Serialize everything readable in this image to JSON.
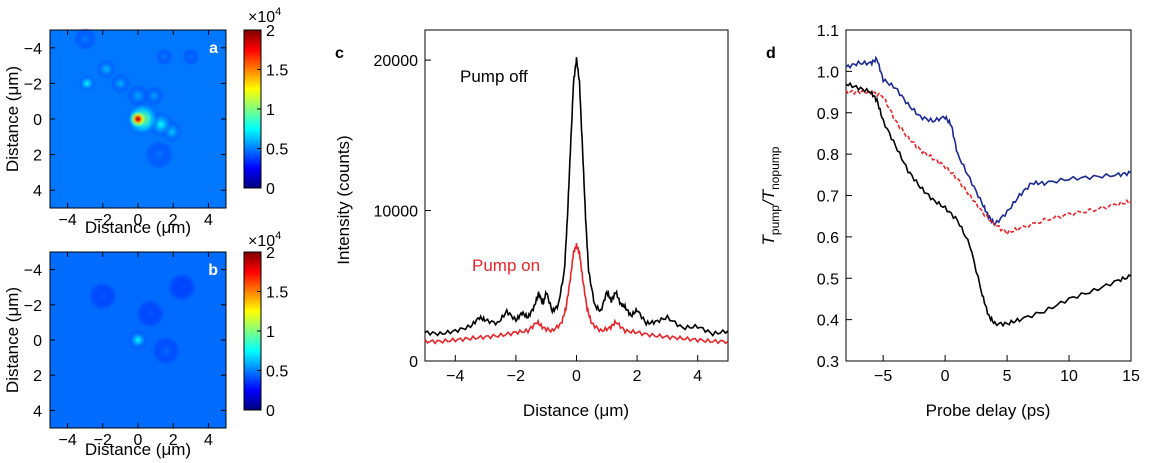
{
  "chart_data": [
    {
      "type": "heatmap",
      "panel_label": "a",
      "xlabel": "Distance (μm)",
      "ylabel": "Distance (μm)",
      "xlim": [
        -5,
        5
      ],
      "ylim": [
        -5,
        5
      ],
      "y_inverted": true,
      "xticks": [
        -4,
        -2,
        0,
        2,
        4
      ],
      "yticks": [
        -4,
        -2,
        0,
        2,
        4
      ],
      "background_value": 3500,
      "spots": [
        {
          "x": 0.0,
          "y": 0.0,
          "value": 20000,
          "width": 0.35
        },
        {
          "x": 0.25,
          "y": 0.0,
          "value": 12000,
          "width": 0.6
        },
        {
          "x": 1.3,
          "y": 0.3,
          "value": 7500,
          "width": 0.45
        },
        {
          "x": 1.9,
          "y": 0.7,
          "value": 6500,
          "width": 0.4
        },
        {
          "x": -2.9,
          "y": -2.0,
          "value": 7500,
          "width": 0.3
        },
        {
          "x": -1.8,
          "y": -2.8,
          "value": 6200,
          "width": 0.35
        },
        {
          "x": -1.0,
          "y": -2.0,
          "value": 6000,
          "width": 0.35
        },
        {
          "x": 0.0,
          "y": -1.3,
          "value": 5800,
          "width": 0.4
        },
        {
          "x": 0.9,
          "y": -1.3,
          "value": 5600,
          "width": 0.35
        },
        {
          "x": 1.5,
          "y": -3.5,
          "value": 5000,
          "width": 0.3
        },
        {
          "x": 3.0,
          "y": -3.5,
          "value": 4800,
          "width": 0.3
        },
        {
          "x": -3.0,
          "y": -4.5,
          "value": 5000,
          "width": 0.4
        },
        {
          "x": 1.2,
          "y": 2.0,
          "value": 4800,
          "width": 0.5
        }
      ],
      "colorbar": {
        "min": 0,
        "max": 20000,
        "ticks": [
          0,
          0.5,
          1,
          1.5,
          2
        ],
        "multiplier": "×10",
        "multiplier_exp": "4"
      }
    },
    {
      "type": "heatmap",
      "panel_label": "b",
      "xlabel": "Distance (μm)",
      "ylabel": "Distance (μm)",
      "xlim": [
        -5,
        5
      ],
      "ylim": [
        -5,
        5
      ],
      "y_inverted": true,
      "xticks": [
        -4,
        -2,
        0,
        2,
        4
      ],
      "yticks": [
        -4,
        -2,
        0,
        2,
        4
      ],
      "background_value": 3200,
      "spots": [
        {
          "x": 0.0,
          "y": 0.0,
          "value": 7500,
          "width": 0.35
        },
        {
          "x": 1.6,
          "y": 0.6,
          "value": 4600,
          "width": 0.5
        },
        {
          "x": -2.0,
          "y": -2.5,
          "value": 4200,
          "width": 0.5
        },
        {
          "x": 0.7,
          "y": -1.5,
          "value": 4200,
          "width": 0.5
        },
        {
          "x": 2.5,
          "y": -3.0,
          "value": 4000,
          "width": 0.5
        }
      ],
      "colorbar": {
        "min": 0,
        "max": 20000,
        "ticks": [
          0,
          0.5,
          1,
          1.5,
          2
        ],
        "multiplier": "×10",
        "multiplier_exp": "4"
      }
    },
    {
      "type": "line",
      "panel_label": "c",
      "xlabel": "Distance (μm)",
      "ylabel": "Intensity (counts)",
      "xlim": [
        -5,
        5
      ],
      "ylim": [
        0,
        22000
      ],
      "xticks": [
        -4,
        -2,
        0,
        2,
        4
      ],
      "yticks": [
        0,
        10000,
        20000
      ],
      "series": [
        {
          "name": "Pump off",
          "color": "#000000",
          "x": [
            -5,
            -4.5,
            -4,
            -3.5,
            -3.2,
            -3.0,
            -2.6,
            -2.3,
            -2.0,
            -1.8,
            -1.6,
            -1.4,
            -1.25,
            -1.1,
            -1.0,
            -0.8,
            -0.6,
            -0.4,
            -0.3,
            -0.2,
            -0.1,
            0,
            0.1,
            0.2,
            0.3,
            0.4,
            0.6,
            0.8,
            1.0,
            1.15,
            1.3,
            1.45,
            1.6,
            1.8,
            2.0,
            2.3,
            2.6,
            3.0,
            3.5,
            4.0,
            4.5,
            5.0
          ],
          "y": [
            1900,
            1800,
            2000,
            2300,
            2900,
            2700,
            2500,
            3300,
            2700,
            3200,
            2900,
            3600,
            4500,
            3800,
            4600,
            3300,
            3700,
            6000,
            9500,
            14000,
            18500,
            20100,
            18500,
            14000,
            9500,
            6000,
            3700,
            3300,
            4600,
            4000,
            4600,
            3800,
            3600,
            3000,
            3400,
            2500,
            2600,
            2900,
            2200,
            2300,
            1800,
            2000
          ]
        },
        {
          "name": "Pump on",
          "color": "#e3262b",
          "x": [
            -5,
            -4.5,
            -4,
            -3.5,
            -3.0,
            -2.5,
            -2.0,
            -1.6,
            -1.3,
            -1.1,
            -0.8,
            -0.5,
            -0.35,
            -0.2,
            -0.1,
            0,
            0.1,
            0.2,
            0.35,
            0.5,
            0.8,
            1.1,
            1.3,
            1.6,
            2.0,
            2.5,
            3.0,
            3.5,
            4.0,
            4.5,
            5.0
          ],
          "y": [
            1300,
            1300,
            1400,
            1500,
            1600,
            1700,
            1900,
            2000,
            2600,
            2200,
            2000,
            2500,
            3500,
            5500,
            7200,
            7700,
            7200,
            5500,
            3500,
            2500,
            2000,
            2200,
            2600,
            2000,
            1900,
            1700,
            1600,
            1500,
            1400,
            1300,
            1300
          ]
        }
      ]
    },
    {
      "type": "line",
      "panel_label": "d",
      "xlabel": "Probe delay (ps)",
      "ylabel_main": "T",
      "ylabel_sub1": "pump",
      "ylabel_sep": "/T",
      "ylabel_sub2": "nopump",
      "xlim": [
        -8,
        15
      ],
      "ylim": [
        0.3,
        1.1
      ],
      "xticks": [
        -5,
        0,
        5,
        10,
        15
      ],
      "yticks": [
        0.3,
        0.4,
        0.5,
        0.6,
        0.7,
        0.8,
        0.9,
        1.0,
        1.1
      ],
      "ytick_labels": [
        "0.3",
        "0.4",
        "0.5",
        "0.6",
        "0.7",
        "0.8",
        "0.9",
        "1.0",
        "1.1"
      ],
      "series": [
        {
          "color": "#1b2a8f",
          "x": [
            -8,
            -7,
            -6,
            -5.5,
            -5,
            -4,
            -3,
            -2,
            -1,
            0,
            0.5,
            1,
            2,
            3,
            3.5,
            4,
            5,
            6,
            7,
            8,
            10,
            12,
            14,
            15
          ],
          "y": [
            1.01,
            1.02,
            1.02,
            1.03,
            0.98,
            0.96,
            0.92,
            0.89,
            0.88,
            0.89,
            0.87,
            0.8,
            0.74,
            0.68,
            0.65,
            0.63,
            0.66,
            0.7,
            0.73,
            0.73,
            0.74,
            0.745,
            0.75,
            0.755
          ]
        },
        {
          "color": "#e3262b",
          "dashed": true,
          "x": [
            -8,
            -7,
            -6,
            -5,
            -4,
            -3,
            -2,
            -1,
            0,
            1,
            2,
            3,
            4,
            5,
            6,
            8,
            10,
            12,
            14,
            15
          ],
          "y": [
            0.95,
            0.95,
            0.95,
            0.94,
            0.88,
            0.84,
            0.81,
            0.79,
            0.77,
            0.74,
            0.7,
            0.66,
            0.63,
            0.61,
            0.62,
            0.64,
            0.655,
            0.665,
            0.68,
            0.685
          ]
        },
        {
          "color": "#000000",
          "x": [
            -8,
            -7,
            -6,
            -5.5,
            -5,
            -4,
            -3,
            -2,
            -1,
            0,
            1,
            2,
            3,
            3.5,
            4,
            5,
            6,
            8,
            10,
            12,
            14,
            15
          ],
          "y": [
            0.97,
            0.96,
            0.95,
            0.93,
            0.88,
            0.82,
            0.76,
            0.72,
            0.69,
            0.67,
            0.64,
            0.58,
            0.46,
            0.41,
            0.39,
            0.39,
            0.4,
            0.42,
            0.45,
            0.47,
            0.495,
            0.505
          ]
        }
      ]
    }
  ]
}
